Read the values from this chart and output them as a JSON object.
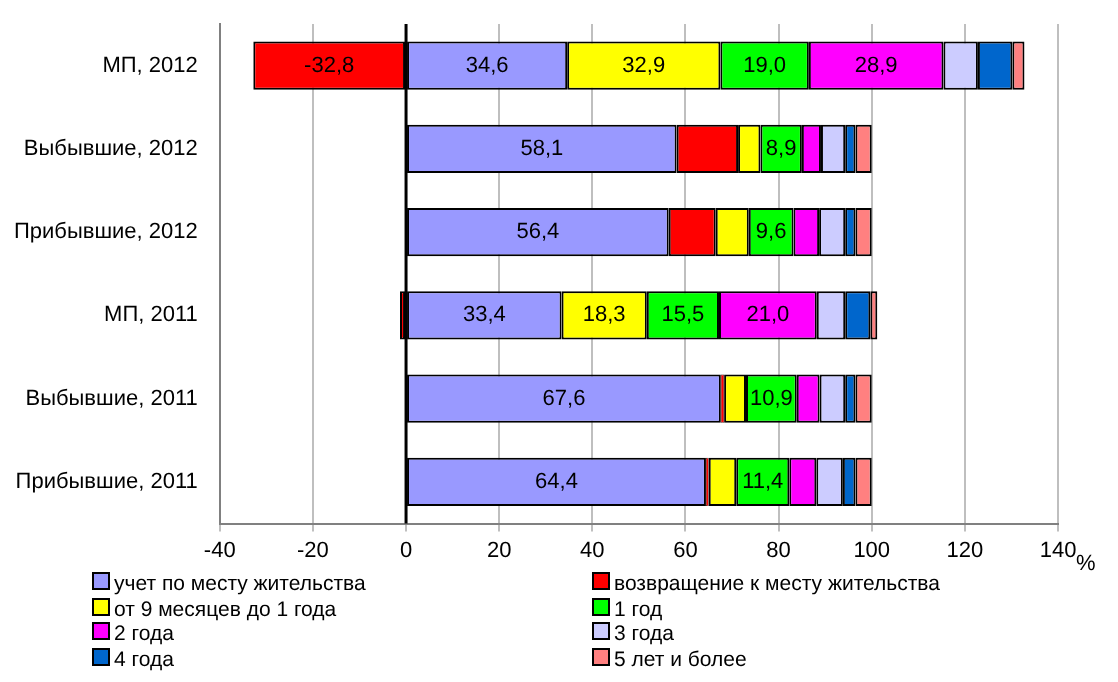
{
  "chart_data": {
    "type": "bar",
    "orientation": "horizontal",
    "stacked": true,
    "xlabel": "%",
    "categories": [
      "МП, 2012",
      "Выбывшие, 2012",
      "Прибывшие, 2012",
      "МП, 2011",
      "Выбывшие, 2011",
      "Прибывшие, 2011"
    ],
    "series": [
      {
        "name": "учет по месту жительства",
        "color": "#9999ff",
        "values": [
          34.6,
          58.1,
          56.4,
          33.4,
          67.6,
          64.4
        ],
        "value_labels": [
          "34,6",
          "58,1",
          "56,4",
          "33,4",
          "67,6",
          "64,4"
        ]
      },
      {
        "name": "возвращение к месту жительства",
        "color": "#ff0000",
        "values": [
          -32.8,
          13.2,
          10.1,
          -1.3,
          0.7,
          0.6
        ],
        "value_labels": [
          "-32,8",
          null,
          null,
          null,
          null,
          null
        ]
      },
      {
        "name": "от 9 месяцев до 1 года",
        "color": "#ffff00",
        "values": [
          32.9,
          4.8,
          7.1,
          18.3,
          4.7,
          5.9
        ],
        "value_labels": [
          "32,9",
          null,
          null,
          "18,3",
          null,
          null
        ]
      },
      {
        "name": "1 год",
        "color": "#00ff00",
        "values": [
          19.0,
          8.9,
          9.6,
          15.5,
          10.9,
          11.4
        ],
        "value_labels": [
          "19,0",
          "8,9",
          "9,6",
          "15,5",
          "10,9",
          "11,4"
        ]
      },
      {
        "name": "2 года",
        "color": "#ff00ff",
        "values": [
          28.9,
          4.1,
          5.5,
          21.0,
          4.9,
          5.8
        ],
        "value_labels": [
          "28,9",
          null,
          null,
          "21,0",
          null,
          null
        ]
      },
      {
        "name": "3 года",
        "color": "#ccccff",
        "values": [
          7.4,
          5.2,
          5.6,
          6.1,
          5.5,
          5.7
        ]
      },
      {
        "name": "4 года",
        "color": "#0066cc",
        "values": [
          7.4,
          2.2,
          2.2,
          5.4,
          2.2,
          2.7
        ]
      },
      {
        "name": "5 лет и более",
        "color": "#ff8080",
        "values": [
          2.6,
          3.5,
          3.5,
          1.5,
          3.5,
          3.5
        ]
      }
    ],
    "xlim": [
      -40,
      140
    ],
    "xticks": [
      -40,
      -20,
      0,
      20,
      40,
      60,
      80,
      100,
      120,
      140
    ],
    "grid": "x",
    "legend": "bottom"
  }
}
